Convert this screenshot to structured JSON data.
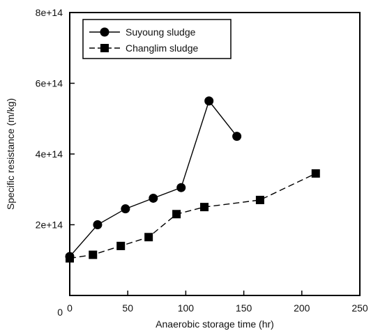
{
  "chart_data": {
    "type": "line",
    "xlabel": "Anaerobic storage time (hr)",
    "ylabel": "Specific resistance (m/kg)",
    "xlim": [
      0,
      250
    ],
    "ylim": [
      0,
      800000000000000.0
    ],
    "x_ticks": [
      0,
      50,
      100,
      150,
      200,
      250
    ],
    "x_tick_labels": [
      "0",
      "50",
      "100",
      "150",
      "200",
      "250"
    ],
    "y_ticks": [
      0,
      200000000000000.0,
      400000000000000.0,
      600000000000000.0,
      800000000000000.0
    ],
    "y_tick_labels": [
      "0",
      "2e+14",
      "4e+14",
      "6e+14",
      "8e+14"
    ],
    "grid": false,
    "legend": {
      "position": "top-left",
      "entries": [
        "Suyoung sludge",
        "Changlim sludge"
      ]
    },
    "series": [
      {
        "name": "Suyoung sludge",
        "marker": "circle",
        "line": "solid",
        "x": [
          0,
          24,
          48,
          72,
          96,
          120,
          144
        ],
        "y": [
          110000000000000.0,
          200000000000000.0,
          245000000000000.0,
          275000000000000.0,
          305000000000000.0,
          550000000000000.0,
          450000000000000.0
        ]
      },
      {
        "name": "Changlim sludge",
        "marker": "square",
        "line": "dashed",
        "x": [
          0,
          20,
          44,
          68,
          92,
          116,
          164,
          212
        ],
        "y": [
          105000000000000.0,
          115000000000000.0,
          140000000000000.0,
          165000000000000.0,
          230000000000000.0,
          250000000000000.0,
          270000000000000.0,
          345000000000000.0
        ]
      }
    ]
  }
}
